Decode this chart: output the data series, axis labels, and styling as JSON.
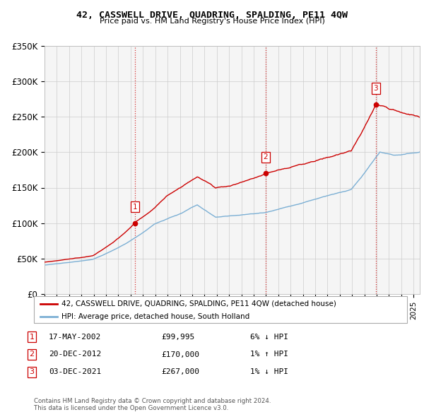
{
  "title": "42, CASSWELL DRIVE, QUADRING, SPALDING, PE11 4QW",
  "subtitle": "Price paid vs. HM Land Registry's House Price Index (HPI)",
  "ylabel_ticks": [
    "£0",
    "£50K",
    "£100K",
    "£150K",
    "£200K",
    "£250K",
    "£300K",
    "£350K"
  ],
  "ylim": [
    0,
    350000
  ],
  "xlim_start": 1995.0,
  "xlim_end": 2025.5,
  "sale_dates_decimal": [
    2002.37,
    2012.97,
    2021.92
  ],
  "sale_prices": [
    99995,
    170000,
    267000
  ],
  "sale_labels": [
    "1",
    "2",
    "3"
  ],
  "vline_color": "#cc0000",
  "legend_red_label": "42, CASSWELL DRIVE, QUADRING, SPALDING, PE11 4QW (detached house)",
  "legend_blue_label": "HPI: Average price, detached house, South Holland",
  "table_rows": [
    {
      "num": "1",
      "date": "17-MAY-2002",
      "price": "£99,995",
      "hpi": "6% ↓ HPI"
    },
    {
      "num": "2",
      "date": "20-DEC-2012",
      "price": "£170,000",
      "hpi": "1% ↑ HPI"
    },
    {
      "num": "3",
      "date": "03-DEC-2021",
      "price": "£267,000",
      "hpi": "1% ↓ HPI"
    }
  ],
  "footer": "Contains HM Land Registry data © Crown copyright and database right 2024.\nThis data is licensed under the Open Government Licence v3.0.",
  "red_line_color": "#cc0000",
  "blue_line_color": "#7bafd4",
  "background_color": "#ffffff",
  "grid_color": "#cccccc",
  "plot_bg_color": "#f5f5f5"
}
